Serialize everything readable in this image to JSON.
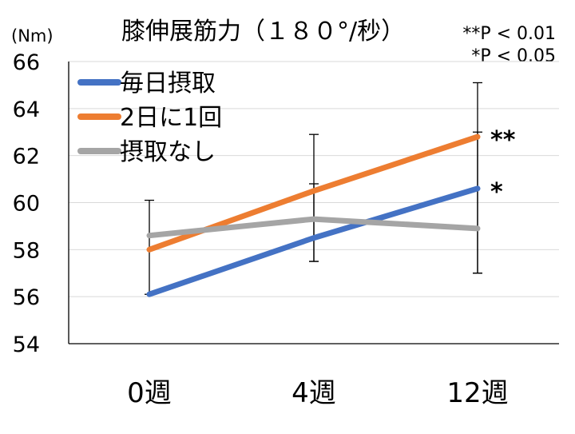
{
  "chart_data": {
    "type": "line",
    "title": "膝伸展筋力（１８０°/秒）",
    "unit_label": "(Nm)",
    "categories": [
      "0週",
      "4週",
      "12週"
    ],
    "ylim": [
      54,
      66
    ],
    "yticks": [
      "54",
      "56",
      "58",
      "60",
      "62",
      "64",
      "66"
    ],
    "grid": true,
    "legend_position": "top-left",
    "significance_notes": [
      "**P < 0.01",
      "*P < 0.05"
    ],
    "series": [
      {
        "name": "毎日摂取",
        "color": "#4472C4",
        "values": [
          56.1,
          58.5,
          60.6
        ],
        "error_bars": [
          {
            "upper": 60.1,
            "lower": 56.1
          },
          {
            "upper": 60.8,
            "lower": 57.5
          },
          {
            "upper": 65.1,
            "lower": 57.0
          }
        ],
        "significance_mark": "*"
      },
      {
        "name": "2日に1回",
        "color": "#ED7D31",
        "values": [
          58.0,
          60.5,
          62.8
        ],
        "error_bars": [
          null,
          {
            "upper": 62.9,
            "lower": 57.5
          },
          {
            "upper": 63.0,
            "lower": 57.0
          }
        ],
        "significance_mark": "**"
      },
      {
        "name": "摂取なし",
        "color": "#A5A5A5",
        "values": [
          58.6,
          59.3,
          58.9
        ],
        "error_bars": [
          null,
          null,
          null
        ],
        "significance_mark": ""
      }
    ]
  }
}
